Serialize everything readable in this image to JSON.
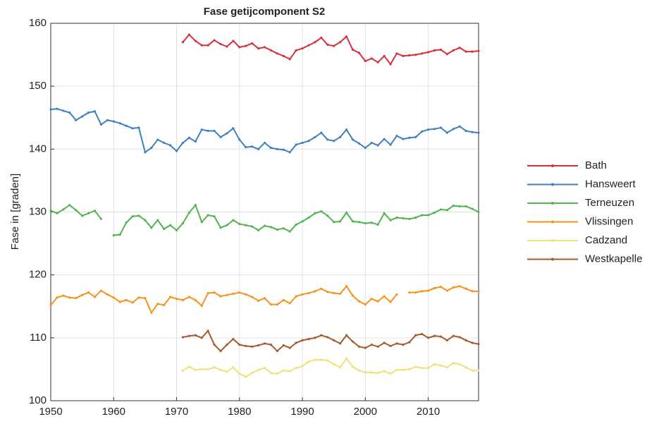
{
  "chart_data": {
    "type": "line",
    "title": "Fase getijcomponent S2",
    "y_label": "Fase in [graden]",
    "x": [
      1950,
      1951,
      1952,
      1953,
      1954,
      1955,
      1956,
      1957,
      1958,
      1959,
      1960,
      1961,
      1962,
      1963,
      1964,
      1965,
      1966,
      1967,
      1968,
      1969,
      1970,
      1971,
      1972,
      1973,
      1974,
      1975,
      1976,
      1977,
      1978,
      1979,
      1980,
      1981,
      1982,
      1983,
      1984,
      1985,
      1986,
      1987,
      1988,
      1989,
      1990,
      1991,
      1992,
      1993,
      1994,
      1995,
      1996,
      1997,
      1998,
      1999,
      2000,
      2001,
      2002,
      2003,
      2004,
      2005,
      2006,
      2007,
      2008,
      2009,
      2010,
      2011,
      2012,
      2013,
      2014,
      2015,
      2016,
      2017,
      2018
    ],
    "series": [
      {
        "name": "Bath",
        "color": "#d7313b",
        "values": [
          null,
          null,
          null,
          null,
          null,
          null,
          null,
          null,
          null,
          null,
          null,
          null,
          null,
          null,
          null,
          null,
          null,
          null,
          null,
          null,
          null,
          157,
          158.2,
          157.2,
          156.5,
          156.5,
          157.3,
          156.7,
          156.3,
          157.2,
          156.2,
          156.4,
          156.8,
          156,
          156.2,
          155.7,
          155.2,
          154.8,
          154.3,
          155.7,
          156,
          156.5,
          157,
          157.7,
          156.6,
          156.4,
          157,
          157.9,
          155.8,
          155.3,
          154,
          154.4,
          153.8,
          154.8,
          153.5,
          155.2,
          154.8,
          154.9,
          155,
          155.2,
          155.4,
          155.7,
          155.8,
          155.1,
          155.7,
          156.1,
          155.5,
          155.5,
          155.6
        ]
      },
      {
        "name": "Hansweert",
        "color": "#3f80c0",
        "values": [
          146.3,
          146.4,
          146.1,
          145.8,
          144.6,
          145.2,
          145.8,
          146,
          143.9,
          144.6,
          144.4,
          144.1,
          143.7,
          143.3,
          143.4,
          139.5,
          140.2,
          141.5,
          141,
          140.6,
          139.7,
          141,
          141.8,
          141.2,
          143.1,
          142.9,
          142.9,
          141.9,
          142.5,
          143.3,
          141.5,
          140.3,
          140.4,
          140,
          141,
          140.2,
          140,
          139.9,
          139.5,
          140.7,
          141,
          141.3,
          141.9,
          142.6,
          141.5,
          141.3,
          141.9,
          143.1,
          141.5,
          140.9,
          140.2,
          141,
          140.6,
          141.6,
          140.7,
          142.1,
          141.6,
          141.8,
          141.9,
          142.8,
          143.1,
          143.2,
          143.4,
          142.6,
          143.2,
          143.6,
          142.9,
          142.7,
          142.6
        ]
      },
      {
        "name": "Terneuzen",
        "color": "#52b44e",
        "values": [
          130.2,
          129.8,
          130.4,
          131.1,
          130.3,
          129.4,
          129.8,
          130.2,
          128.9,
          null,
          126.3,
          126.4,
          128.3,
          129.3,
          129.4,
          128.7,
          127.5,
          128.7,
          127.3,
          127.9,
          127.1,
          128.2,
          129.9,
          131.1,
          128.4,
          129.5,
          129.3,
          127.5,
          127.9,
          128.7,
          128.1,
          127.9,
          127.7,
          127.1,
          127.8,
          127.6,
          127.2,
          127.4,
          126.9,
          128,
          128.5,
          129.1,
          129.8,
          130.1,
          129.4,
          128.4,
          128.5,
          129.9,
          128.5,
          128.4,
          128.2,
          128.3,
          128,
          129.8,
          128.7,
          129.1,
          129,
          128.9,
          129.1,
          129.5,
          129.5,
          129.9,
          130.4,
          130.3,
          131,
          130.9,
          130.9,
          130.5,
          130
        ]
      },
      {
        "name": "Vlissingen",
        "color": "#f7921e",
        "values": [
          115.2,
          116.4,
          116.7,
          116.4,
          116.3,
          116.8,
          117.2,
          116.5,
          117.5,
          116.9,
          116.4,
          115.7,
          116,
          115.6,
          116.4,
          116.3,
          114,
          115.4,
          115.2,
          116.5,
          116.2,
          116,
          116.5,
          116,
          115.1,
          117.1,
          117.2,
          116.6,
          116.8,
          117,
          117.2,
          116.9,
          116.5,
          115.9,
          116.3,
          115.3,
          115.3,
          116,
          115.5,
          116.6,
          116.9,
          117.1,
          117.4,
          117.8,
          117.3,
          117.1,
          117,
          118.2,
          116.7,
          115.8,
          115.3,
          116.2,
          115.8,
          116.6,
          115.7,
          116.9,
          null,
          117.2,
          117.2,
          117.4,
          117.5,
          117.9,
          118.1,
          117.5,
          118,
          118.2,
          117.8,
          117.4,
          117.4
        ]
      },
      {
        "name": "Cadzand",
        "color": "#eee27a",
        "values": [
          null,
          null,
          null,
          null,
          null,
          null,
          null,
          null,
          null,
          null,
          null,
          null,
          null,
          null,
          null,
          null,
          null,
          null,
          null,
          null,
          null,
          104.8,
          105.4,
          104.9,
          105,
          105,
          105.3,
          104.9,
          104.6,
          105.3,
          104.3,
          103.8,
          104.4,
          104.9,
          105.2,
          104.4,
          104.3,
          104.8,
          104.7,
          105.2,
          105.5,
          106.2,
          106.5,
          106.5,
          106.4,
          105.8,
          105.3,
          106.7,
          105.4,
          104.8,
          104.5,
          104.5,
          104.4,
          104.7,
          104.3,
          104.9,
          104.9,
          105,
          105.4,
          105.2,
          105.2,
          105.8,
          105.6,
          105.3,
          106,
          105.8,
          105.3,
          104.8,
          104.8
        ]
      },
      {
        "name": "Westkapelle",
        "color": "#a65a2e",
        "values": [
          null,
          null,
          null,
          null,
          null,
          null,
          null,
          null,
          null,
          null,
          null,
          null,
          null,
          null,
          null,
          null,
          null,
          null,
          null,
          null,
          null,
          110.1,
          110.3,
          110.4,
          110,
          111.1,
          108.9,
          107.9,
          108.9,
          109.8,
          108.9,
          108.7,
          108.6,
          108.8,
          109.1,
          108.9,
          107.9,
          108.8,
          108.4,
          109.2,
          109.6,
          109.8,
          110,
          110.4,
          110.1,
          109.6,
          109.1,
          110.4,
          109.4,
          108.6,
          108.4,
          108.9,
          108.6,
          109.2,
          108.7,
          109.1,
          108.9,
          109.3,
          110.4,
          110.6,
          110,
          110.3,
          110.2,
          109.6,
          110.3,
          110.1,
          109.6,
          109.2,
          109
        ]
      }
    ],
    "xlim": [
      1950,
      2018
    ],
    "xticks": [
      1950,
      1960,
      1970,
      1980,
      1990,
      2000,
      2010
    ],
    "ylim": [
      100,
      160
    ],
    "yticks": [
      100,
      110,
      120,
      130,
      140,
      150,
      160
    ],
    "grid": true,
    "legend": "right"
  }
}
